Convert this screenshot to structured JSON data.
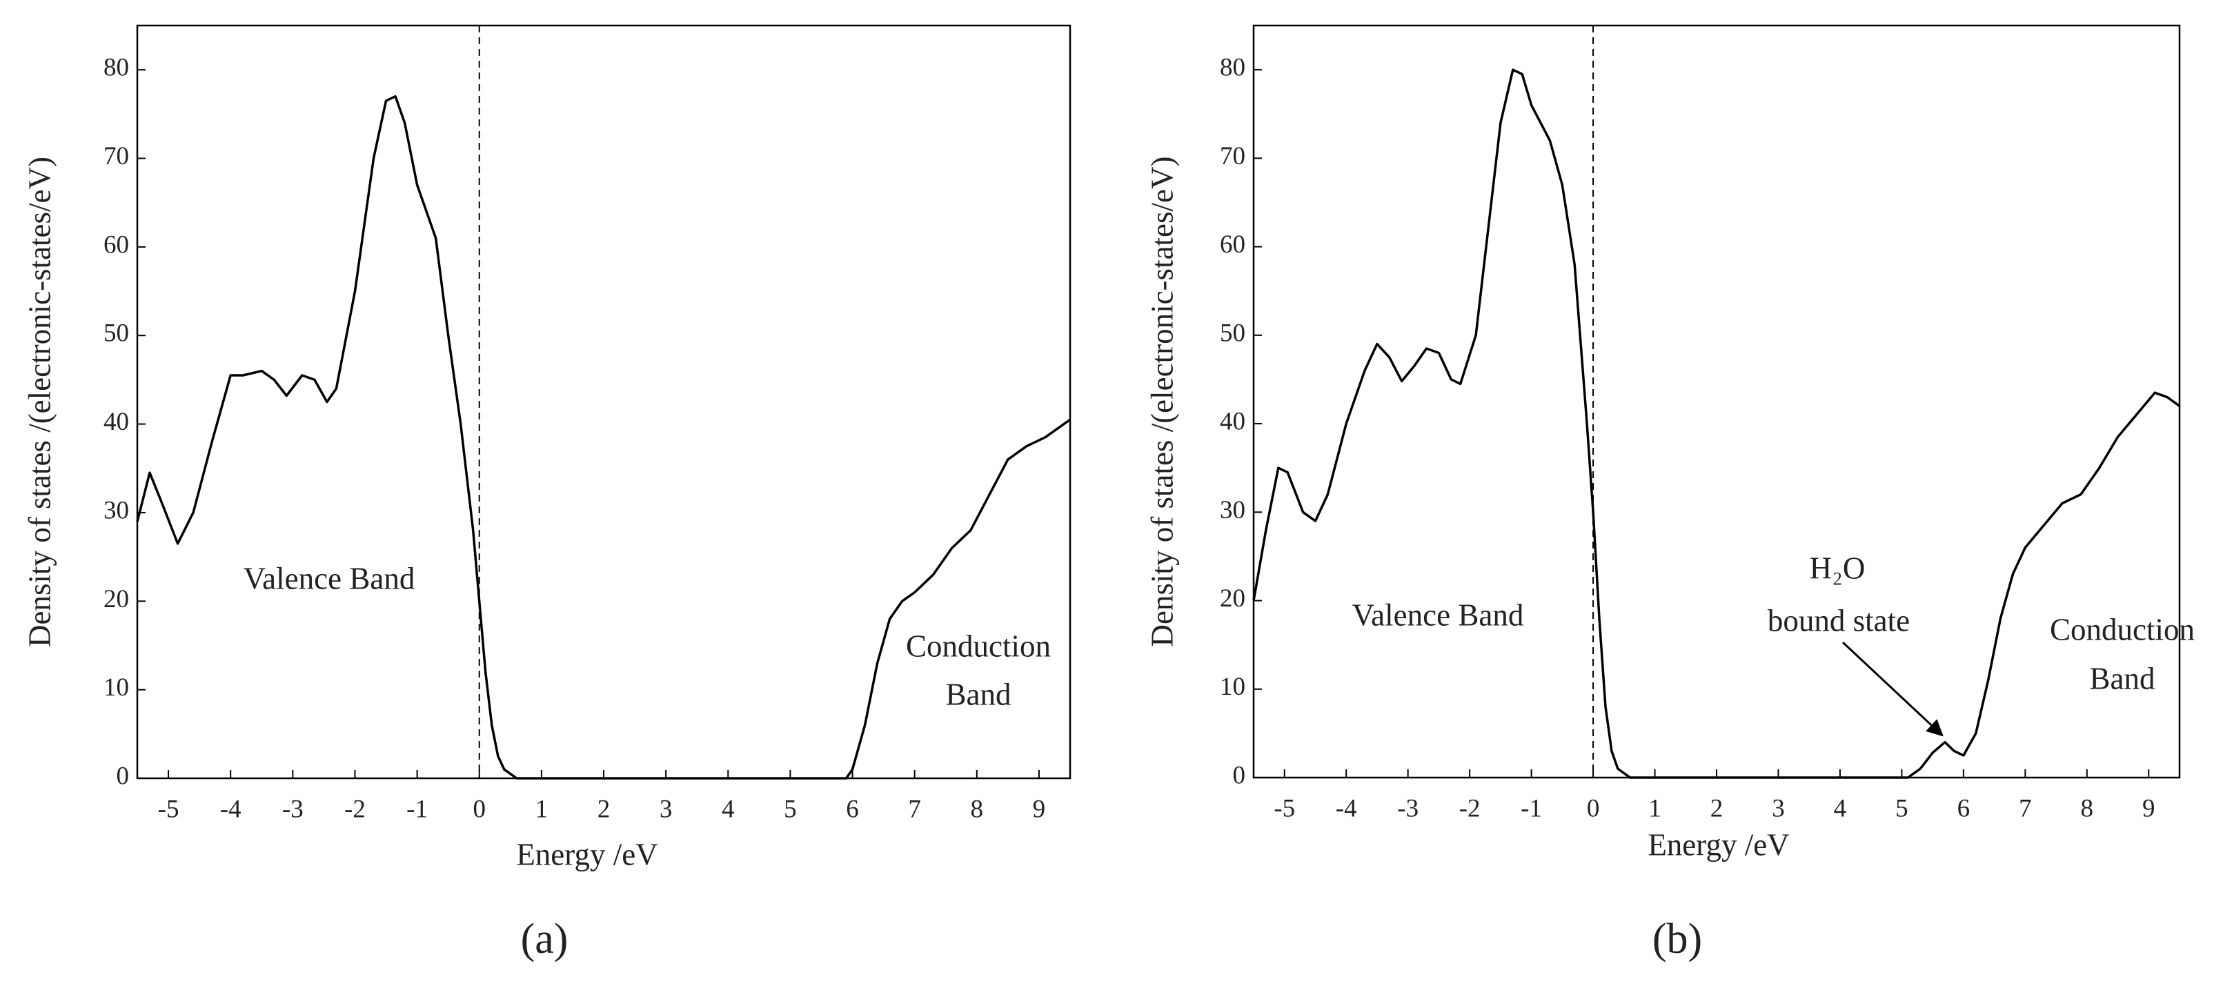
{
  "chart_data": [
    {
      "type": "line",
      "caption": "(a)",
      "xlabel": "Energy /eV",
      "ylabel": "Density of states /(electronic-states/eV)",
      "xlim": [
        -5.5,
        9.5
      ],
      "ylim": [
        0,
        85
      ],
      "xticks": [
        -5,
        -4,
        -3,
        -2,
        -1,
        0,
        1,
        2,
        3,
        4,
        5,
        6,
        7,
        8,
        9
      ],
      "yticks": [
        0,
        10,
        20,
        30,
        40,
        50,
        60,
        70,
        80
      ],
      "vline": 0,
      "color": "#000000",
      "annotations": [
        "Valence Band",
        "Conduction",
        "Band"
      ],
      "x": [
        -5.5,
        -5.3,
        -5.1,
        -4.85,
        -4.6,
        -4.3,
        -4.0,
        -3.8,
        -3.5,
        -3.3,
        -3.1,
        -2.85,
        -2.65,
        -2.45,
        -2.3,
        -2.0,
        -1.7,
        -1.5,
        -1.35,
        -1.2,
        -1.0,
        -0.7,
        -0.5,
        -0.3,
        -0.1,
        0,
        0.1,
        0.2,
        0.3,
        0.4,
        0.6,
        5.9,
        6.0,
        6.2,
        6.4,
        6.6,
        6.8,
        7.0,
        7.3,
        7.6,
        7.9,
        8.2,
        8.5,
        8.8,
        9.1,
        9.5
      ],
      "values": [
        29,
        34.5,
        31,
        26.5,
        30,
        38,
        45.5,
        45.5,
        46,
        45,
        43.2,
        45.5,
        45,
        42.5,
        44,
        55,
        70,
        76.5,
        77,
        74,
        67,
        61,
        50,
        40,
        28,
        20,
        12,
        6,
        2.5,
        1,
        0,
        0,
        1,
        6,
        13,
        18,
        20,
        21,
        23,
        26,
        28,
        32,
        36,
        37.5,
        38.5,
        40.5
      ]
    },
    {
      "type": "line",
      "caption": "(b)",
      "xlabel": "Energy /eV",
      "ylabel": "Density of states /(electronic-states/eV)",
      "xlim": [
        -5.5,
        9.5
      ],
      "ylim": [
        0,
        85
      ],
      "xticks": [
        -5,
        -4,
        -3,
        -2,
        -1,
        0,
        1,
        2,
        3,
        4,
        5,
        6,
        7,
        8,
        9
      ],
      "yticks": [
        0,
        10,
        20,
        30,
        40,
        50,
        60,
        70,
        80
      ],
      "vline": 0,
      "color": "#000000",
      "annotations": [
        "Valence Band",
        "Conduction",
        "Band",
        "H₂O",
        "bound state"
      ],
      "x": [
        -5.5,
        -5.3,
        -5.1,
        -4.95,
        -4.7,
        -4.5,
        -4.3,
        -4.0,
        -3.7,
        -3.5,
        -3.3,
        -3.1,
        -2.9,
        -2.7,
        -2.5,
        -2.3,
        -2.15,
        -1.9,
        -1.7,
        -1.5,
        -1.3,
        -1.15,
        -1.0,
        -0.7,
        -0.5,
        -0.3,
        -0.1,
        0,
        0.1,
        0.2,
        0.3,
        0.4,
        0.6,
        5.1,
        5.3,
        5.5,
        5.7,
        5.85,
        6.0,
        6.2,
        6.4,
        6.6,
        6.8,
        7.0,
        7.3,
        7.6,
        7.9,
        8.2,
        8.5,
        8.8,
        9.1,
        9.3,
        9.5
      ],
      "values": [
        20,
        28,
        35,
        34.5,
        30,
        29,
        32,
        40,
        46,
        49,
        47.5,
        44.8,
        46.5,
        48.5,
        48,
        45,
        44.5,
        50,
        62,
        74,
        80,
        79.5,
        76,
        72,
        67,
        58,
        40,
        30,
        18,
        8,
        3,
        1,
        0,
        0,
        1,
        2.8,
        4,
        3,
        2.5,
        5,
        11,
        18,
        23,
        26,
        28.5,
        31,
        32,
        35,
        38.5,
        41,
        43.5,
        43,
        42
      ]
    }
  ]
}
